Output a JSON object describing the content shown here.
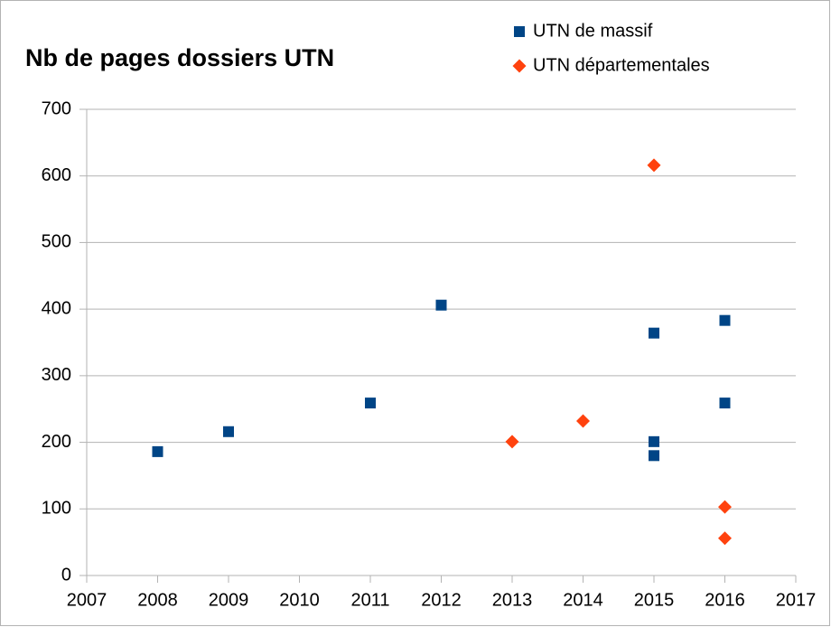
{
  "chart_data": {
    "type": "scatter",
    "title": "Nb de pages dossiers UTN",
    "series": [
      {
        "name": "UTN de massif",
        "color": "#004586",
        "marker": "square",
        "x": [
          2008,
          2009,
          2011,
          2012,
          2015,
          2015,
          2015,
          2016,
          2016
        ],
        "values": [
          186,
          216,
          259,
          406,
          364,
          201,
          180,
          383,
          259
        ]
      },
      {
        "name": "UTN départementales",
        "color": "#ff420e",
        "marker": "diamond",
        "x": [
          2013,
          2014,
          2015,
          2016,
          2016
        ],
        "values": [
          201,
          232,
          616,
          103,
          56
        ]
      }
    ],
    "xlim": [
      2007,
      2017
    ],
    "xticks": [
      2007,
      2008,
      2009,
      2010,
      2011,
      2012,
      2013,
      2014,
      2015,
      2016,
      2017
    ],
    "ylim": [
      0,
      700
    ],
    "yticks": [
      0,
      100,
      200,
      300,
      400,
      500,
      600,
      700
    ],
    "grid": true,
    "legend": "top-right"
  }
}
